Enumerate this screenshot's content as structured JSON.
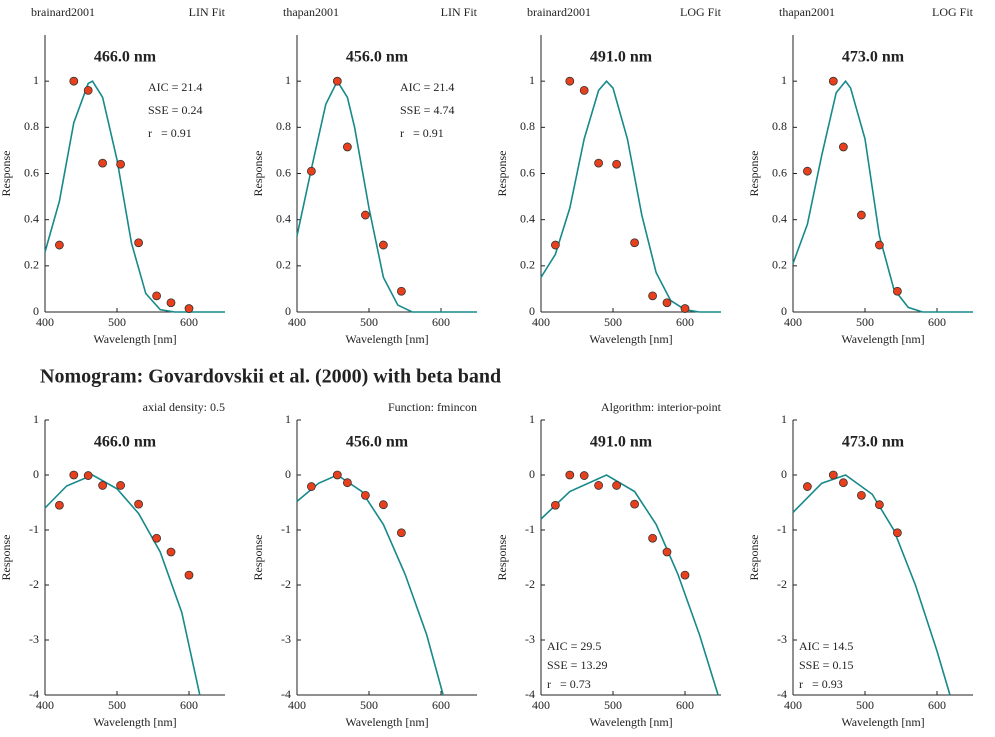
{
  "heading": "Nomogram: Govardovskii et al. (2000) with beta band",
  "chart_data": [
    {
      "type": "scatter",
      "header_left": "brainard2001",
      "header_right": "LIN Fit",
      "title": "466.0 nm",
      "xlabel": "Wavelength [nm]",
      "ylabel": "Response",
      "xlim": [
        400,
        650
      ],
      "ylim": [
        0,
        1.2
      ],
      "xticks": [
        400,
        500,
        600
      ],
      "yticks": [
        0,
        0.2,
        0.4,
        0.6,
        0.8,
        1
      ],
      "annotations": [
        "AIC = 21.4",
        "SSE = 0.24",
        "r   = 0.91"
      ],
      "series": [
        {
          "type": "scatter",
          "color": "#e8401c",
          "x": [
            420,
            440,
            460,
            480,
            505,
            530,
            555,
            575,
            600
          ],
          "values": [
            0.29,
            1.0,
            0.96,
            0.645,
            0.64,
            0.3,
            0.07,
            0.04,
            0.015
          ]
        },
        {
          "type": "line",
          "color": "#17898b",
          "x": [
            400,
            420,
            440,
            460,
            466,
            480,
            500,
            520,
            540,
            560,
            580,
            600,
            650
          ],
          "values": [
            0.26,
            0.48,
            0.82,
            0.99,
            1.0,
            0.93,
            0.66,
            0.3,
            0.08,
            0.01,
            0,
            0,
            0
          ]
        }
      ]
    },
    {
      "type": "scatter",
      "header_left": "thapan2001",
      "header_right": "LIN Fit",
      "title": "456.0 nm",
      "xlabel": "Wavelength [nm]",
      "ylabel": "Response",
      "xlim": [
        400,
        650
      ],
      "ylim": [
        0,
        1.2
      ],
      "xticks": [
        400,
        500,
        600
      ],
      "yticks": [
        0,
        0.2,
        0.4,
        0.6,
        0.8,
        1
      ],
      "annotations": [
        "AIC = 21.4",
        "SSE = 4.74",
        "r   = 0.91"
      ],
      "series": [
        {
          "type": "scatter",
          "color": "#e8401c",
          "x": [
            420,
            456,
            470,
            495,
            520,
            545
          ],
          "values": [
            0.61,
            1.0,
            0.715,
            0.42,
            0.29,
            0.09
          ]
        },
        {
          "type": "line",
          "color": "#17898b",
          "x": [
            400,
            420,
            440,
            456,
            470,
            480,
            500,
            520,
            540,
            560,
            650
          ],
          "values": [
            0.33,
            0.62,
            0.9,
            1.0,
            0.93,
            0.8,
            0.45,
            0.15,
            0.03,
            0,
            0
          ]
        }
      ]
    },
    {
      "type": "scatter",
      "header_left": "brainard2001",
      "header_right": "LOG Fit",
      "title": "491.0 nm",
      "xlabel": "Wavelength [nm]",
      "ylabel": "Response",
      "xlim": [
        400,
        650
      ],
      "ylim": [
        0,
        1.2
      ],
      "xticks": [
        400,
        500,
        600
      ],
      "yticks": [
        0,
        0.2,
        0.4,
        0.6,
        0.8,
        1
      ],
      "series": [
        {
          "type": "scatter",
          "color": "#e8401c",
          "x": [
            420,
            440,
            460,
            480,
            505,
            530,
            555,
            575,
            600
          ],
          "values": [
            0.29,
            1.0,
            0.96,
            0.645,
            0.64,
            0.3,
            0.07,
            0.04,
            0.015
          ]
        },
        {
          "type": "line",
          "color": "#17898b",
          "x": [
            400,
            420,
            440,
            460,
            480,
            491,
            500,
            520,
            540,
            560,
            580,
            600,
            620,
            650
          ],
          "values": [
            0.15,
            0.25,
            0.45,
            0.75,
            0.96,
            1.0,
            0.97,
            0.75,
            0.42,
            0.17,
            0.05,
            0.01,
            0,
            0
          ]
        }
      ]
    },
    {
      "type": "scatter",
      "header_left": "thapan2001",
      "header_right": "LOG Fit",
      "title": "473.0 nm",
      "xlabel": "Wavelength [nm]",
      "ylabel": "Response",
      "xlim": [
        400,
        650
      ],
      "ylim": [
        0,
        1.2
      ],
      "xticks": [
        400,
        500,
        600
      ],
      "yticks": [
        0,
        0.2,
        0.4,
        0.6,
        0.8,
        1
      ],
      "series": [
        {
          "type": "scatter",
          "color": "#e8401c",
          "x": [
            420,
            456,
            470,
            495,
            520,
            545
          ],
          "values": [
            0.61,
            1.0,
            0.715,
            0.42,
            0.29,
            0.09
          ]
        },
        {
          "type": "line",
          "color": "#17898b",
          "x": [
            400,
            420,
            440,
            460,
            473,
            480,
            500,
            520,
            540,
            560,
            580,
            650
          ],
          "values": [
            0.21,
            0.38,
            0.68,
            0.95,
            1.0,
            0.97,
            0.75,
            0.33,
            0.1,
            0.02,
            0,
            0
          ]
        }
      ]
    },
    {
      "type": "scatter",
      "header_right": "axial density: 0.5",
      "title": "466.0 nm",
      "xlabel": "Wavelength [nm]",
      "ylabel": "Response",
      "xlim": [
        400,
        650
      ],
      "ylim": [
        -4,
        1
      ],
      "xticks": [
        400,
        500,
        600
      ],
      "yticks": [
        -4,
        -3,
        -2,
        -1,
        0,
        1
      ],
      "series": [
        {
          "type": "scatter",
          "color": "#e8401c",
          "x": [
            420,
            440,
            460,
            480,
            505,
            530,
            555,
            575,
            600
          ],
          "values": [
            -0.55,
            0,
            -0.01,
            -0.19,
            -0.19,
            -0.53,
            -1.15,
            -1.4,
            -1.82
          ]
        },
        {
          "type": "line",
          "color": "#17898b",
          "x": [
            400,
            430,
            466,
            500,
            530,
            560,
            590,
            615
          ],
          "values": [
            -0.6,
            -0.2,
            0,
            -0.25,
            -0.7,
            -1.4,
            -2.5,
            -4
          ]
        }
      ]
    },
    {
      "type": "scatter",
      "header_right": "Function: fmincon",
      "title": "456.0 nm",
      "xlabel": "Wavelength [nm]",
      "ylabel": "Response",
      "xlim": [
        400,
        650
      ],
      "ylim": [
        -4,
        1
      ],
      "xticks": [
        400,
        500,
        600
      ],
      "yticks": [
        -4,
        -3,
        -2,
        -1,
        0,
        1
      ],
      "series": [
        {
          "type": "scatter",
          "color": "#e8401c",
          "x": [
            420,
            456,
            470,
            495,
            520,
            545
          ],
          "values": [
            -0.21,
            0,
            -0.14,
            -0.37,
            -0.54,
            -1.05
          ]
        },
        {
          "type": "line",
          "color": "#17898b",
          "x": [
            400,
            430,
            456,
            490,
            520,
            550,
            580,
            603
          ],
          "values": [
            -0.48,
            -0.15,
            0,
            -0.3,
            -0.9,
            -1.8,
            -2.9,
            -4
          ]
        }
      ]
    },
    {
      "type": "scatter",
      "header_right": "Algorithm: interior-point",
      "title": "491.0 nm",
      "xlabel": "Wavelength [nm]",
      "ylabel": "Response",
      "xlim": [
        400,
        650
      ],
      "ylim": [
        -4,
        1
      ],
      "xticks": [
        400,
        500,
        600
      ],
      "yticks": [
        -4,
        -3,
        -2,
        -1,
        0,
        1
      ],
      "annotations": [
        "AIC = 29.5",
        "SSE = 13.29",
        "r   = 0.73"
      ],
      "series": [
        {
          "type": "scatter",
          "color": "#e8401c",
          "x": [
            420,
            440,
            460,
            480,
            505,
            530,
            555,
            575,
            600
          ],
          "values": [
            -0.55,
            0,
            -0.01,
            -0.19,
            -0.19,
            -0.53,
            -1.15,
            -1.4,
            -1.82
          ]
        },
        {
          "type": "line",
          "color": "#17898b",
          "x": [
            400,
            440,
            491,
            530,
            560,
            590,
            620,
            646
          ],
          "values": [
            -0.8,
            -0.3,
            0,
            -0.3,
            -0.9,
            -1.8,
            -2.9,
            -4
          ]
        }
      ]
    },
    {
      "type": "scatter",
      "title": "473.0 nm",
      "xlabel": "Wavelength [nm]",
      "ylabel": "Response",
      "xlim": [
        400,
        650
      ],
      "ylim": [
        -4,
        1
      ],
      "xticks": [
        400,
        500,
        600
      ],
      "yticks": [
        -4,
        -3,
        -2,
        -1,
        0,
        1
      ],
      "annotations": [
        "AIC = 14.5",
        "SSE = 0.15",
        "r   = 0.93"
      ],
      "series": [
        {
          "type": "scatter",
          "color": "#e8401c",
          "x": [
            420,
            456,
            470,
            495,
            520,
            545
          ],
          "values": [
            -0.21,
            0,
            -0.14,
            -0.37,
            -0.54,
            -1.05
          ]
        },
        {
          "type": "line",
          "color": "#17898b",
          "x": [
            400,
            440,
            473,
            510,
            540,
            570,
            600,
            618
          ],
          "values": [
            -0.68,
            -0.15,
            0,
            -0.35,
            -1.0,
            -2.0,
            -3.2,
            -4
          ]
        }
      ]
    }
  ]
}
